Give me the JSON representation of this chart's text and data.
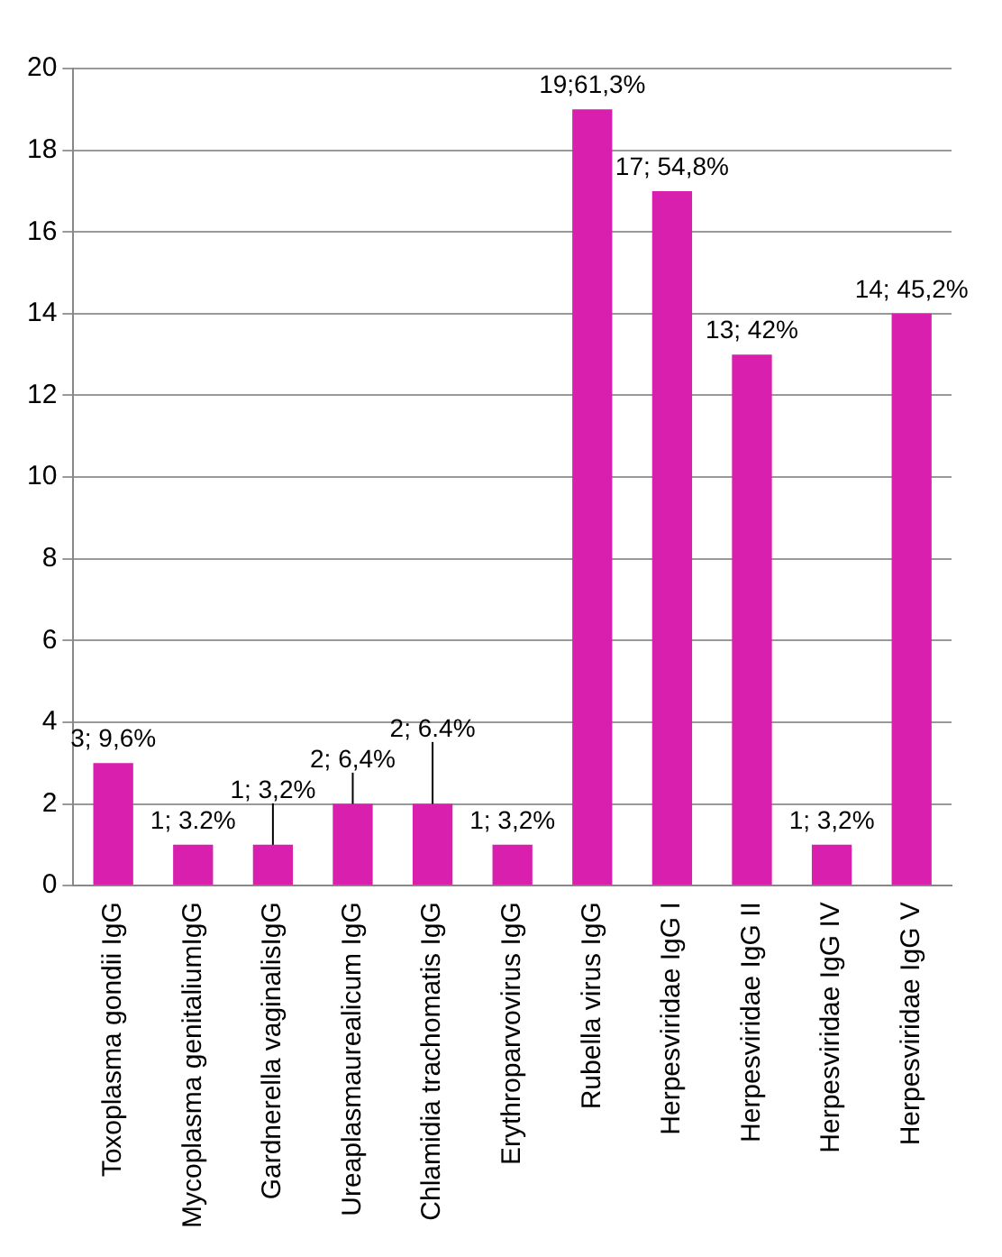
{
  "chart_data": {
    "type": "bar",
    "categories": [
      "Toxoplasma gondii IgG",
      "Mycoplasma genitaliumIgG",
      "Gardnerella vaginalisIgG",
      "Ureaplasmaurealicum IgG",
      "Chlamidia trachomatis IgG",
      "Erythroparvovirus IgG",
      "Rubella virus IgG",
      "Herpesviridae IgG I",
      "Herpesviridae IgG II",
      "Herpesviridae IgG IV",
      "Herpesviridae IgG V"
    ],
    "values": [
      3,
      1,
      1,
      2,
      2,
      1,
      19,
      17,
      13,
      1,
      14
    ],
    "value_labels": [
      "3; 9,6%",
      "1; 3.2%",
      "1; 3,2%",
      "2; 6,4%",
      "2; 6.4%",
      "1; 3,2%",
      "19;61,3%",
      "17; 54,8%",
      "13; 42%",
      "1; 3,2%",
      "14; 45,2%"
    ],
    "color": "#d81fae",
    "ylim": [
      0,
      20
    ],
    "yticks": [
      0,
      2,
      4,
      6,
      8,
      10,
      12,
      14,
      16,
      18,
      20
    ],
    "grid": "y",
    "legend": false
  }
}
